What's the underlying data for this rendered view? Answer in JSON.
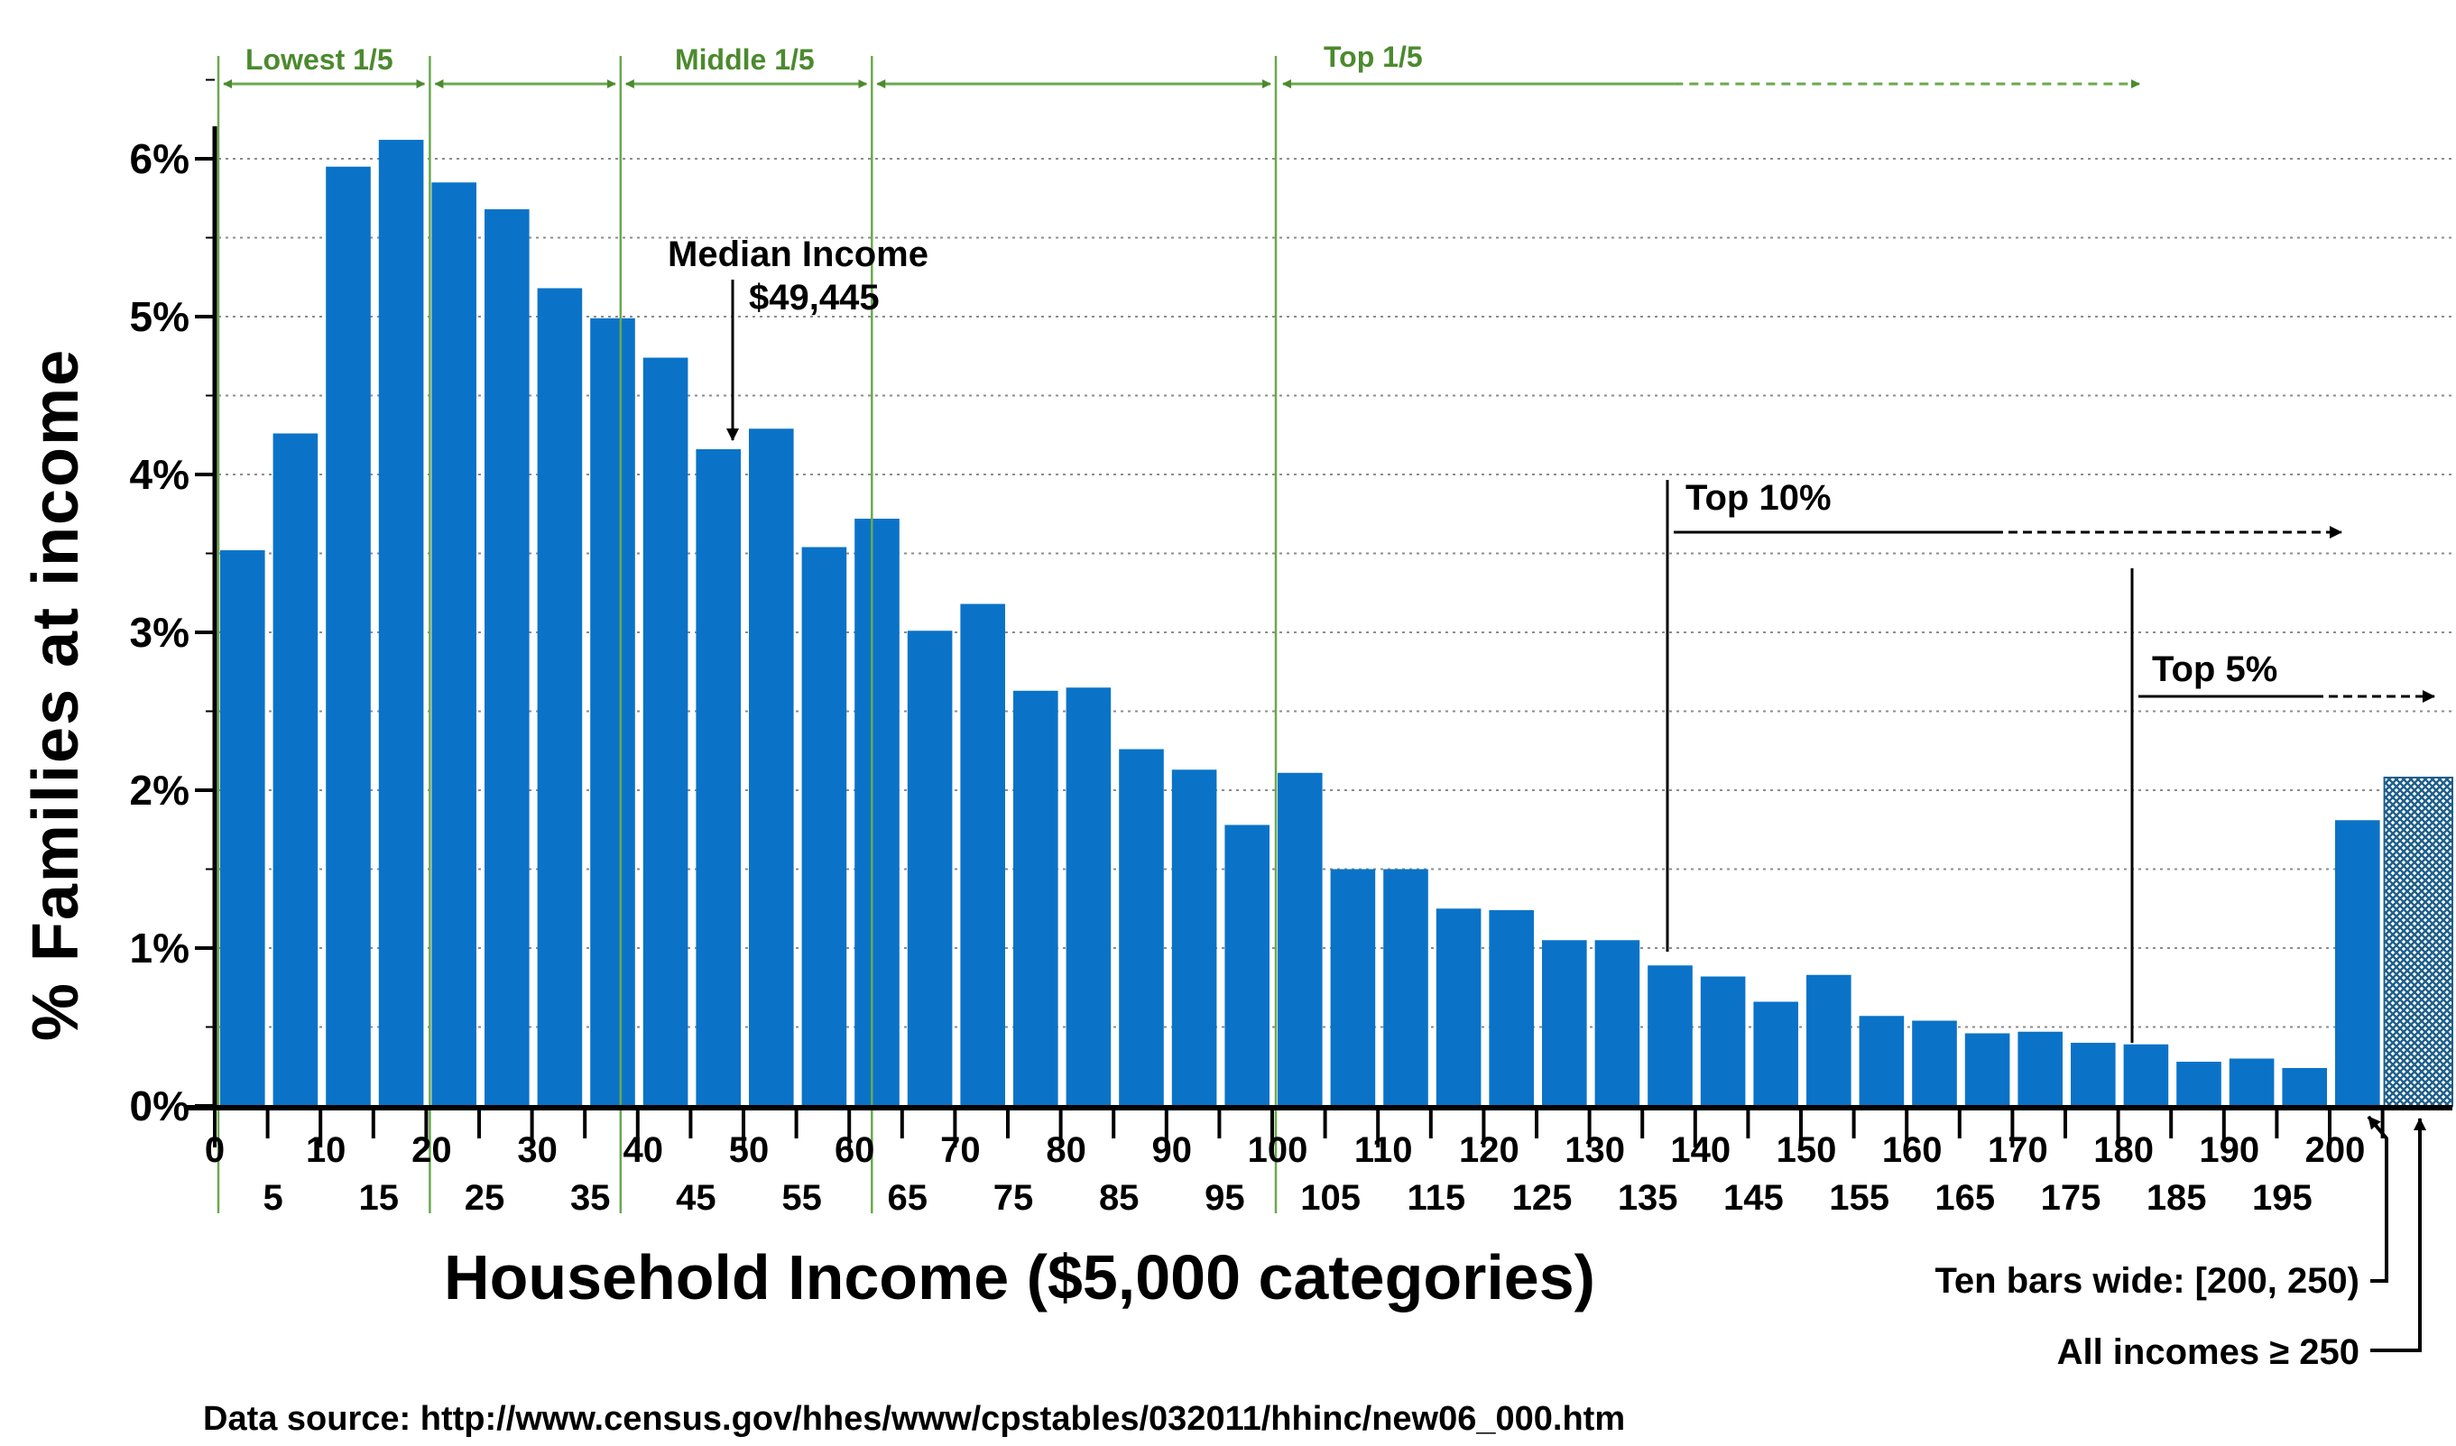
{
  "chart_data": {
    "type": "bar",
    "xlabel": "Household Income ($5,000 categories)",
    "ylabel": "% Families at income",
    "ylim": [
      0,
      6
    ],
    "y_ticks": [
      "0%",
      "1%",
      "2%",
      "3%",
      "4%",
      "5%",
      "6%"
    ],
    "x_ticks_upper": [
      "0",
      "10",
      "20",
      "30",
      "40",
      "50",
      "60",
      "70",
      "80",
      "90",
      "100",
      "110",
      "120",
      "130",
      "140",
      "150",
      "160",
      "170",
      "180",
      "190",
      "200"
    ],
    "x_ticks_lower": [
      "5",
      "15",
      "25",
      "35",
      "45",
      "55",
      "65",
      "75",
      "85",
      "95",
      "105",
      "115",
      "125",
      "135",
      "145",
      "155",
      "165",
      "175",
      "185",
      "195"
    ],
    "grid": "horizontal dotted",
    "bar_color": "#0a73c8",
    "hatch_color": "#1f5f8b",
    "guide_color": "#6aa84f",
    "values": [
      3.52,
      4.26,
      5.95,
      6.12,
      5.85,
      5.68,
      5.18,
      4.99,
      4.74,
      4.16,
      4.29,
      3.54,
      3.72,
      3.01,
      3.18,
      2.63,
      2.65,
      2.26,
      2.13,
      1.78,
      2.11,
      1.5,
      1.5,
      1.25,
      1.24,
      1.05,
      1.05,
      0.89,
      0.82,
      0.66,
      0.83,
      0.57,
      0.54,
      0.46,
      0.47,
      0.4,
      0.39,
      0.28,
      0.3,
      0.24,
      1.81
    ],
    "overflow_bar": {
      "value": 2.08
    },
    "annotations": {
      "median_label": "Median Income",
      "median_value": "$49,445",
      "top10": "Top 10%",
      "top5": "Top 5%",
      "ten_bars": "Ten bars wide: [200, 250)",
      "all_incomes": "All incomes ≥ 250"
    },
    "quintiles": {
      "lowest": "Lowest 1/5",
      "middle": "Middle 1/5",
      "top": "Top 1/5"
    },
    "source": "Data source:   http://www.census.gov/hhes/www/cpstables/032011/hhinc/new06_000.htm"
  }
}
